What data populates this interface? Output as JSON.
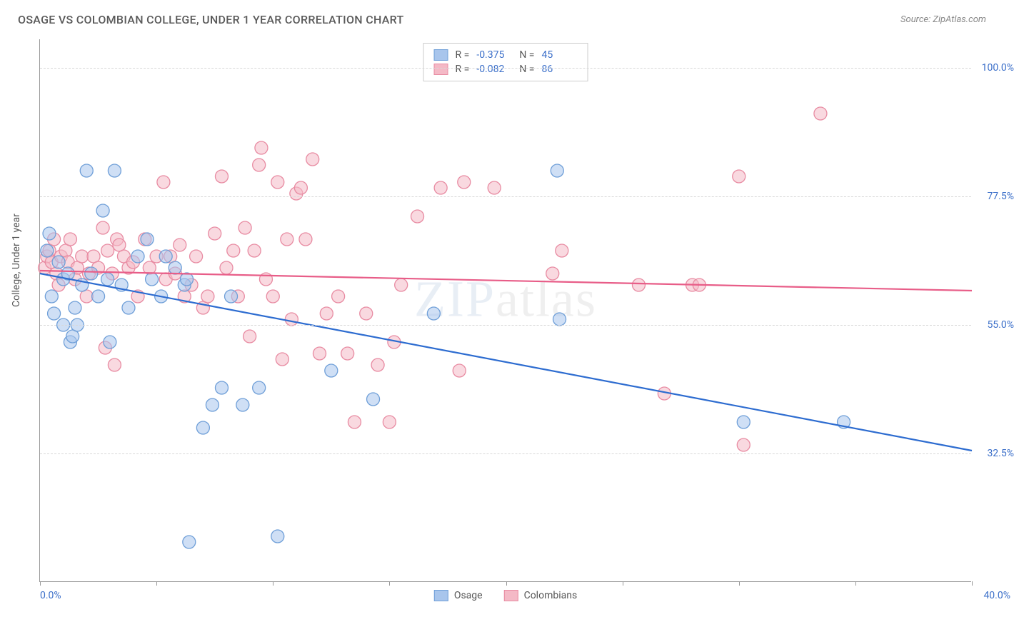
{
  "header": {
    "title": "OSAGE VS COLOMBIAN COLLEGE, UNDER 1 YEAR CORRELATION CHART",
    "source": "Source: ZipAtlas.com"
  },
  "ylabel": "College, Under 1 year",
  "watermark_a": "ZIP",
  "watermark_b": "atlas",
  "chart": {
    "type": "scatter",
    "xlim": [
      0,
      40
    ],
    "ylim": [
      10,
      105
    ],
    "xtick_positions": [
      0,
      5,
      10,
      15,
      20,
      25,
      30,
      35,
      40
    ],
    "xtick_label_left": "0.0%",
    "xtick_label_right": "40.0%",
    "gridlines_y": [
      32.5,
      55.0,
      77.5,
      100.0
    ],
    "ytick_labels": [
      "32.5%",
      "55.0%",
      "77.5%",
      "100.0%"
    ],
    "background_color": "#ffffff",
    "grid_color": "#d8d8d8",
    "axis_color": "#999999",
    "marker_radius": 9,
    "marker_opacity": 0.55,
    "line_width": 2.2,
    "series": [
      {
        "name": "Osage",
        "color_fill": "#a8c5ec",
        "color_stroke": "#6f9fd8",
        "line_color": "#2d6cd0",
        "R": "-0.375",
        "N": "45",
        "trendline": {
          "x1": 0,
          "y1": 64,
          "x2": 40,
          "y2": 33
        },
        "points": [
          [
            0.3,
            68
          ],
          [
            0.4,
            71
          ],
          [
            0.5,
            60
          ],
          [
            0.6,
            57
          ],
          [
            0.8,
            66
          ],
          [
            1.0,
            63
          ],
          [
            1.0,
            55
          ],
          [
            1.2,
            64
          ],
          [
            1.3,
            52
          ],
          [
            1.4,
            53
          ],
          [
            1.5,
            58
          ],
          [
            1.6,
            55
          ],
          [
            1.8,
            62
          ],
          [
            2.0,
            82
          ],
          [
            2.2,
            64
          ],
          [
            2.5,
            60
          ],
          [
            2.7,
            75
          ],
          [
            2.9,
            63
          ],
          [
            3.0,
            52
          ],
          [
            3.2,
            82
          ],
          [
            3.5,
            62
          ],
          [
            3.8,
            58
          ],
          [
            4.2,
            67
          ],
          [
            4.6,
            70
          ],
          [
            4.8,
            63
          ],
          [
            5.2,
            60
          ],
          [
            5.4,
            67
          ],
          [
            5.8,
            65
          ],
          [
            6.2,
            62
          ],
          [
            6.3,
            63
          ],
          [
            6.4,
            17
          ],
          [
            7.0,
            37
          ],
          [
            7.4,
            41
          ],
          [
            7.8,
            44
          ],
          [
            8.2,
            60
          ],
          [
            8.7,
            41
          ],
          [
            9.4,
            44
          ],
          [
            10.2,
            18
          ],
          [
            12.5,
            47
          ],
          [
            14.3,
            42
          ],
          [
            16.9,
            57
          ],
          [
            22.2,
            82
          ],
          [
            22.3,
            56
          ],
          [
            30.2,
            38
          ],
          [
            34.5,
            38
          ]
        ]
      },
      {
        "name": "Colombians",
        "color_fill": "#f4b9c6",
        "color_stroke": "#e88ba2",
        "line_color": "#e85d88",
        "R": "-0.082",
        "N": "86",
        "trendline": {
          "x1": 0,
          "y1": 64.5,
          "x2": 40,
          "y2": 61
        },
        "points": [
          [
            0.2,
            65
          ],
          [
            0.3,
            67
          ],
          [
            0.4,
            68
          ],
          [
            0.5,
            66
          ],
          [
            0.6,
            70
          ],
          [
            0.7,
            64
          ],
          [
            0.8,
            62
          ],
          [
            0.9,
            67
          ],
          [
            1.1,
            68
          ],
          [
            1.2,
            66
          ],
          [
            1.3,
            70
          ],
          [
            1.5,
            63
          ],
          [
            1.6,
            65
          ],
          [
            1.8,
            67
          ],
          [
            2.0,
            60
          ],
          [
            2.1,
            64
          ],
          [
            2.3,
            67
          ],
          [
            2.5,
            65
          ],
          [
            2.7,
            72
          ],
          [
            2.8,
            51
          ],
          [
            2.9,
            68
          ],
          [
            3.1,
            64
          ],
          [
            3.2,
            48
          ],
          [
            3.3,
            70
          ],
          [
            3.4,
            69
          ],
          [
            3.6,
            67
          ],
          [
            3.8,
            65
          ],
          [
            4.0,
            66
          ],
          [
            4.2,
            60
          ],
          [
            4.5,
            70
          ],
          [
            4.7,
            65
          ],
          [
            5.0,
            67
          ],
          [
            5.3,
            80
          ],
          [
            5.4,
            63
          ],
          [
            5.6,
            67
          ],
          [
            5.8,
            64
          ],
          [
            6.0,
            69
          ],
          [
            6.2,
            60
          ],
          [
            6.5,
            62
          ],
          [
            6.7,
            67
          ],
          [
            7.0,
            58
          ],
          [
            7.2,
            60
          ],
          [
            7.5,
            71
          ],
          [
            7.8,
            81
          ],
          [
            8.0,
            65
          ],
          [
            8.3,
            68
          ],
          [
            8.5,
            60
          ],
          [
            8.8,
            72
          ],
          [
            9.0,
            53
          ],
          [
            9.2,
            68
          ],
          [
            9.4,
            83
          ],
          [
            9.5,
            86
          ],
          [
            9.7,
            63
          ],
          [
            10.0,
            60
          ],
          [
            10.2,
            80
          ],
          [
            10.4,
            49
          ],
          [
            10.6,
            70
          ],
          [
            10.8,
            56
          ],
          [
            11.0,
            78
          ],
          [
            11.2,
            79
          ],
          [
            11.4,
            70
          ],
          [
            11.7,
            84
          ],
          [
            12.0,
            50
          ],
          [
            12.3,
            57
          ],
          [
            12.8,
            60
          ],
          [
            13.2,
            50
          ],
          [
            13.5,
            38
          ],
          [
            14.0,
            57
          ],
          [
            14.5,
            48
          ],
          [
            15.0,
            38
          ],
          [
            15.2,
            52
          ],
          [
            15.5,
            62
          ],
          [
            16.2,
            74
          ],
          [
            17.2,
            79
          ],
          [
            18.0,
            47
          ],
          [
            18.2,
            80
          ],
          [
            19.5,
            79
          ],
          [
            22.0,
            64
          ],
          [
            22.4,
            68
          ],
          [
            25.7,
            62
          ],
          [
            26.8,
            43
          ],
          [
            28.0,
            62
          ],
          [
            28.3,
            62
          ],
          [
            30.0,
            81
          ],
          [
            30.2,
            34
          ],
          [
            33.5,
            92
          ]
        ]
      }
    ]
  },
  "legend": {
    "items": [
      {
        "label": "Osage",
        "fill": "#a8c5ec",
        "stroke": "#6f9fd8"
      },
      {
        "label": "Colombians",
        "fill": "#f4b9c6",
        "stroke": "#e88ba2"
      }
    ]
  }
}
